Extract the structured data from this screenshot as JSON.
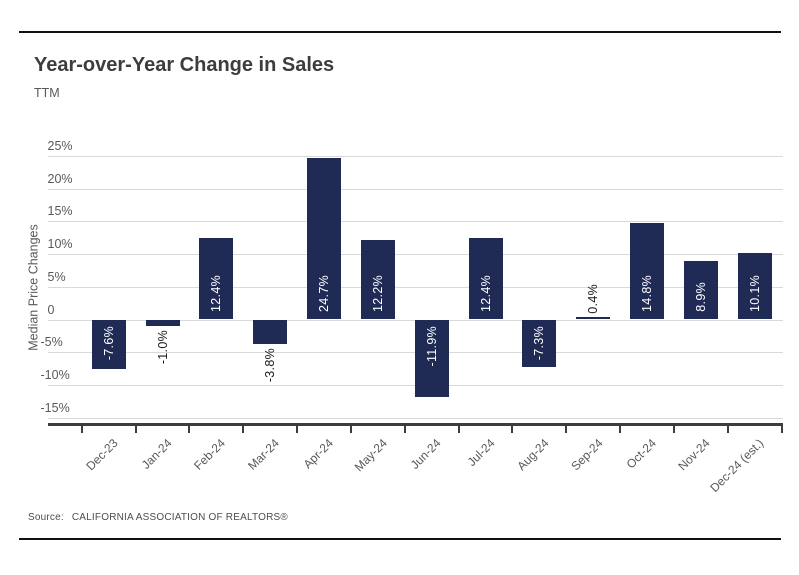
{
  "chart_data": {
    "type": "bar",
    "title": "Year-over-Year Change in Sales",
    "subtitle": "TTM",
    "ylabel": "Median Price Changes",
    "xlabel": "",
    "categories": [
      "Dec-23",
      "Jan-24",
      "Feb-24",
      "Mar-24",
      "Apr-24",
      "May-24",
      "Jun-24",
      "Jul-24",
      "Aug-24",
      "Sep-24",
      "Oct-24",
      "Nov-24",
      "Dec-24 (est.)"
    ],
    "values": [
      -7.6,
      -1.0,
      12.4,
      -3.8,
      24.7,
      12.2,
      -11.9,
      12.4,
      -7.3,
      0.4,
      14.8,
      8.9,
      10.1
    ],
    "value_labels": [
      "-7.6%",
      "-1.0%",
      "12.4%",
      "-3.8%",
      "24.7%",
      "12.2%",
      "-11.9%",
      "12.4%",
      "-7.3%",
      "0.4%",
      "14.8%",
      "8.9%",
      "10.1%"
    ],
    "yticks": {
      "values": [
        25,
        20,
        15,
        10,
        5,
        0,
        -5,
        -10,
        -15
      ],
      "labels": [
        "25%",
        "20%",
        "15%",
        "10%",
        "5%",
        "0",
        "-5%",
        "-10%",
        "-15%"
      ]
    },
    "ylim": [
      -16.5,
      25
    ],
    "grid": true,
    "legend": "none",
    "colors": {
      "bar": "#1f2a55",
      "grid": "#d9d9d9",
      "axis": "#3d3d3d",
      "label_inside": "#ffffff",
      "label_outside": "#1a1a1a",
      "tick_text": "#595959",
      "title_text": "#3d3d3d"
    }
  },
  "footer": {
    "source_label": "Source:",
    "source_text": "CALIFORNIA ASSOCIATION OF REALTORS®"
  }
}
